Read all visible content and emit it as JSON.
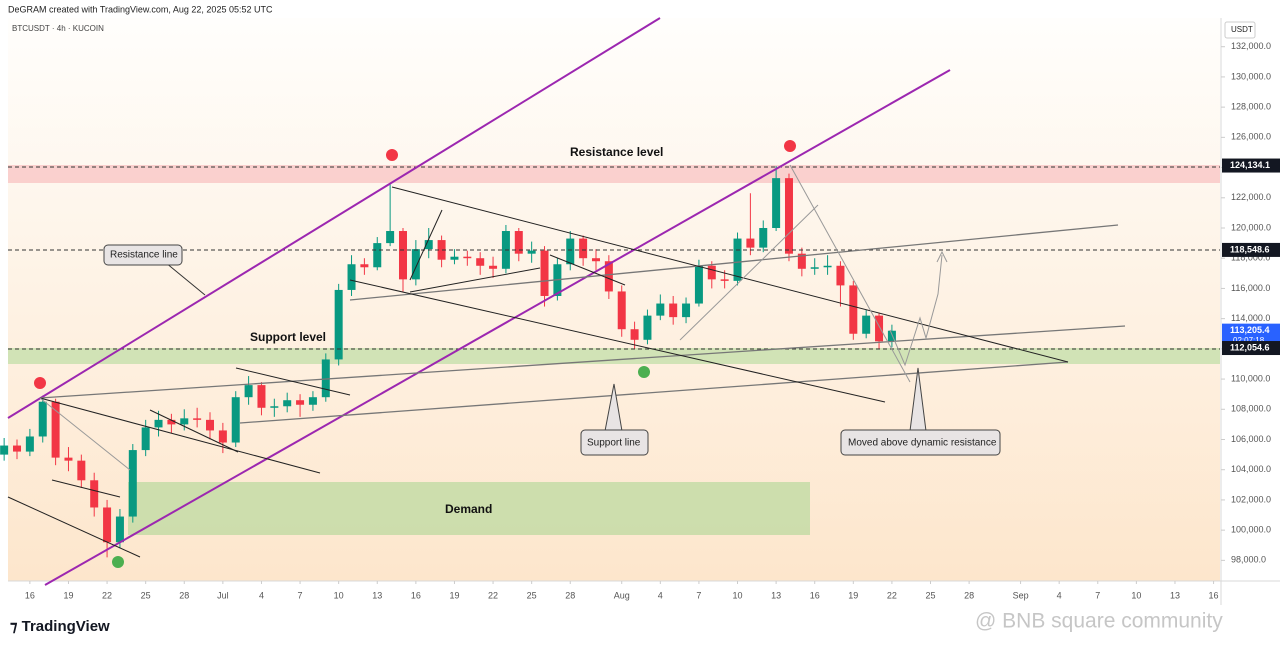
{
  "header": {
    "credit": "DeGRAM created with TradingView.com, Aug 22, 2025 05:52 UTC",
    "symbol": "BTCUSDT · 4h · KUCOIN"
  },
  "chart_data": {
    "type": "candlestick",
    "currency": "USDT",
    "up_color": "#089981",
    "down_color": "#f23645",
    "x": [
      14,
      15,
      16,
      17,
      18,
      19,
      20,
      21,
      22,
      23,
      24,
      25,
      26,
      27,
      28,
      29,
      30,
      31,
      32,
      33,
      34,
      35,
      36,
      37,
      38,
      39,
      40,
      41,
      42,
      43,
      44,
      45,
      46,
      47,
      48,
      49,
      50,
      51,
      52,
      53,
      54,
      55,
      56,
      57,
      58,
      59,
      60,
      61,
      62,
      63,
      64,
      65,
      66,
      67,
      68,
      69,
      70,
      71,
      72,
      73,
      74,
      75,
      76,
      77,
      78,
      79,
      80,
      81,
      82,
      83
    ],
    "open": [
      105000,
      105600,
      105200,
      106200,
      108500,
      104800,
      104600,
      103300,
      101500,
      99200,
      100900,
      105300,
      106800,
      107300,
      107000,
      107400,
      107300,
      106600,
      105800,
      108800,
      109600,
      108100,
      108200,
      108600,
      108300,
      108800,
      111300,
      115900,
      117600,
      117400,
      119000,
      119800,
      116600,
      118600,
      119200,
      117900,
      118100,
      118000,
      117500,
      117300,
      119800,
      118300,
      118500,
      115500,
      117600,
      119300,
      118000,
      117800,
      115800,
      113300,
      112600,
      114200,
      115000,
      114100,
      115000,
      117500,
      116600,
      116500,
      119300,
      118700,
      120000,
      123300,
      118300,
      117300,
      117400,
      117500,
      116200,
      113000,
      114200,
      112500
    ],
    "high": [
      106100,
      106000,
      106700,
      108900,
      108700,
      105500,
      105000,
      103800,
      102000,
      101400,
      105700,
      107300,
      107900,
      107700,
      108000,
      108100,
      107800,
      107100,
      109200,
      110200,
      109800,
      108700,
      109100,
      109000,
      109200,
      111700,
      116300,
      118200,
      118000,
      119400,
      122900,
      120000,
      119200,
      120000,
      119500,
      118600,
      118500,
      118400,
      118100,
      120200,
      120000,
      119100,
      118800,
      118000,
      119800,
      119500,
      118600,
      118200,
      116200,
      113800,
      114600,
      115600,
      115500,
      115400,
      117900,
      117800,
      117200,
      119700,
      122300,
      120500,
      124100,
      123600,
      118700,
      118000,
      118200,
      117800,
      116500,
      114600,
      114400,
      113600
    ],
    "low": [
      104600,
      104700,
      104900,
      105800,
      104300,
      103900,
      102800,
      100900,
      98200,
      98800,
      100500,
      104900,
      106200,
      106400,
      106600,
      106800,
      106000,
      105100,
      105500,
      108300,
      107600,
      107500,
      107800,
      107500,
      107900,
      108500,
      110900,
      115500,
      116900,
      117200,
      118800,
      115800,
      116200,
      118000,
      117400,
      117600,
      117500,
      116900,
      116700,
      117000,
      117800,
      117700,
      114800,
      115200,
      117200,
      117500,
      117200,
      115300,
      112800,
      112000,
      112300,
      113900,
      113600,
      113700,
      114800,
      116000,
      116000,
      116200,
      118200,
      118400,
      119800,
      117800,
      116800,
      116900,
      116900,
      114800,
      112600,
      112700,
      112000,
      112100
    ],
    "close": [
      105600,
      105200,
      106200,
      108500,
      104800,
      104600,
      103300,
      101500,
      99200,
      100900,
      105300,
      106800,
      107300,
      107000,
      107400,
      107300,
      106600,
      105800,
      108800,
      109600,
      108100,
      108200,
      108600,
      108300,
      108800,
      111300,
      115900,
      117600,
      117400,
      119000,
      119800,
      116600,
      118600,
      119200,
      117900,
      118100,
      118000,
      117500,
      117300,
      119800,
      118300,
      118500,
      115500,
      117600,
      119300,
      118000,
      117800,
      115800,
      113300,
      112600,
      114200,
      115000,
      114100,
      115000,
      117500,
      116600,
      116500,
      119300,
      118700,
      120000,
      123300,
      118300,
      117300,
      117400,
      117500,
      116200,
      113000,
      114200,
      112500,
      113200
    ],
    "xlim": [
      14.3,
      108.5
    ],
    "xticks": [
      {
        "value": 16,
        "label": "16"
      },
      {
        "value": 19,
        "label": "19"
      },
      {
        "value": 22,
        "label": "22"
      },
      {
        "value": 25,
        "label": "25"
      },
      {
        "value": 28,
        "label": "28"
      },
      {
        "value": 31,
        "label": "Jul"
      },
      {
        "value": 34,
        "label": "4"
      },
      {
        "value": 37,
        "label": "7"
      },
      {
        "value": 40,
        "label": "10"
      },
      {
        "value": 43,
        "label": "13"
      },
      {
        "value": 46,
        "label": "16"
      },
      {
        "value": 49,
        "label": "19"
      },
      {
        "value": 52,
        "label": "22"
      },
      {
        "value": 55,
        "label": "25"
      },
      {
        "value": 58,
        "label": "28"
      },
      {
        "value": 62,
        "label": "Aug"
      },
      {
        "value": 65,
        "label": "4"
      },
      {
        "value": 68,
        "label": "7"
      },
      {
        "value": 71,
        "label": "10"
      },
      {
        "value": 74,
        "label": "13"
      },
      {
        "value": 77,
        "label": "16"
      },
      {
        "value": 80,
        "label": "19"
      },
      {
        "value": 83,
        "label": "22"
      },
      {
        "value": 86,
        "label": "25"
      },
      {
        "value": 89,
        "label": "28"
      },
      {
        "value": 93,
        "label": "Sep"
      },
      {
        "value": 96,
        "label": "4"
      },
      {
        "value": 99,
        "label": "7"
      },
      {
        "value": 102,
        "label": "10"
      },
      {
        "value": 105,
        "label": "13"
      },
      {
        "value": 108,
        "label": "16"
      }
    ],
    "ylim": [
      96700,
      133900
    ],
    "yticks": [
      {
        "value": 98000,
        "label": "98,000.0"
      },
      {
        "value": 100000,
        "label": "100,000.0"
      },
      {
        "value": 102000,
        "label": "102,000.0"
      },
      {
        "value": 104000,
        "label": "104,000.0"
      },
      {
        "value": 106000,
        "label": "106,000.0"
      },
      {
        "value": 108000,
        "label": "108,000.0"
      },
      {
        "value": 110000,
        "label": "110,000.0"
      },
      {
        "value": 112000,
        "label": "112,000.0"
      },
      {
        "value": 114000,
        "label": "114,000.0"
      },
      {
        "value": 116000,
        "label": "116,000.0"
      },
      {
        "value": 118000,
        "label": "118,000.0"
      },
      {
        "value": 120000,
        "label": "120,000.0"
      },
      {
        "value": 122000,
        "label": "122,000.0"
      },
      {
        "value": 124000,
        "label": "124,000.0"
      },
      {
        "value": 126000,
        "label": "126,000.0"
      },
      {
        "value": 128000,
        "label": "128,000.0"
      },
      {
        "value": 130000,
        "label": "130,000.0"
      },
      {
        "value": 132000,
        "label": "132,000.0"
      }
    ],
    "price_labels": [
      {
        "value": 124134.1,
        "label": "124,134.1",
        "color": "#131722"
      },
      {
        "value": 118548.6,
        "label": "118,548.6",
        "color": "#131722"
      },
      {
        "value": 113205.4,
        "label": "113,205.4",
        "color": "#2962ff"
      },
      {
        "value": 112054.6,
        "label": "112,054.6",
        "color": "#131722"
      }
    ],
    "countdown": "02:07:18",
    "annotations": [
      "Resistance level",
      "Resistance line",
      "Support level",
      "Support line",
      "Demand",
      "Moved above dynamic resistance"
    ]
  },
  "footer": {
    "brand": "TradingView",
    "watermark": "@ BNB square community"
  }
}
